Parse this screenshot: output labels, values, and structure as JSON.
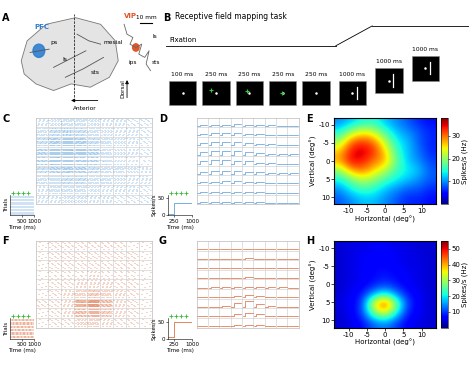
{
  "figure": {
    "panel_labels": [
      "A",
      "B",
      "C",
      "D",
      "E",
      "F",
      "G",
      "H"
    ],
    "A": {
      "regions": [
        {
          "label": "PFC",
          "color": "#2f7fd0"
        },
        {
          "label": "VIP",
          "color": "#e0562a"
        }
      ],
      "sulci": [
        "ls",
        "ps",
        "sts"
      ],
      "section_labels": [
        "ls",
        "sts",
        "ips",
        "mesial"
      ],
      "scale": "10 mm",
      "directions": [
        "Dorsal",
        "Anterior"
      ]
    },
    "B": {
      "title": "Receptive field mapping task",
      "phase": "Fixation",
      "epochs": [
        "100 ms",
        "250 ms",
        "250 ms",
        "250 ms",
        "250 ms",
        "1000 ms",
        "1000 ms",
        "1000 ms"
      ]
    }
  },
  "chart_data": [
    {
      "panel": "C",
      "type": "raster",
      "color": "#3d8fd6",
      "inset": {
        "ylabel": "Trials",
        "xlabel": "Time (ms)",
        "xlim": [
          0,
          1000
        ],
        "xticks": [
          500,
          1000
        ]
      }
    },
    {
      "panel": "D",
      "type": "psth_grid",
      "color": "#3d8fd6",
      "inset": {
        "ylabel": "Spikes/s",
        "ylim": [
          0,
          60
        ],
        "yticks": [
          0,
          50
        ],
        "xlabel": "Time (ms)",
        "xlim": [
          0,
          1000
        ],
        "xticks": [
          250,
          1000
        ]
      }
    },
    {
      "panel": "E",
      "type": "heatmap",
      "xlabel": "Horizontal (deg°)",
      "ylabel": "Vertical (deg°)",
      "xlim": [
        -14,
        14
      ],
      "ylim": [
        12,
        -12
      ],
      "xticks": [
        -10,
        -5,
        0,
        5,
        10
      ],
      "yticks": [
        -10,
        -5,
        0,
        5,
        10
      ],
      "cells": [
        [
          10,
          12,
          14,
          15,
          12,
          10,
          8,
          6,
          5
        ],
        [
          14,
          20,
          24,
          22,
          16,
          12,
          10,
          8,
          6
        ],
        [
          20,
          30,
          32,
          30,
          22,
          14,
          12,
          8,
          6
        ],
        [
          26,
          34,
          36,
          33,
          26,
          16,
          12,
          9,
          6
        ],
        [
          28,
          35,
          34,
          30,
          28,
          18,
          12,
          10,
          7
        ],
        [
          20,
          28,
          30,
          26,
          22,
          16,
          14,
          12,
          8
        ],
        [
          14,
          18,
          22,
          20,
          16,
          14,
          12,
          10,
          8
        ],
        [
          10,
          14,
          16,
          15,
          12,
          10,
          8,
          8,
          6
        ],
        [
          8,
          10,
          12,
          12,
          10,
          8,
          6,
          6,
          5
        ]
      ],
      "colorbar": {
        "label": "Spikes/s (Hz)",
        "lim": [
          0,
          38
        ],
        "ticks": [
          10,
          20,
          30
        ]
      }
    },
    {
      "panel": "F",
      "type": "raster",
      "color": "#d9541e",
      "inset": {
        "ylabel": "Trials",
        "xlabel": "Time (ms)",
        "xlim": [
          0,
          1000
        ],
        "xticks": [
          500,
          1000
        ]
      }
    },
    {
      "panel": "G",
      "type": "psth_grid",
      "color": "#d9541e",
      "inset": {
        "ylabel": "Spikes/s",
        "ylim": [
          0,
          60
        ],
        "yticks": [
          0,
          50
        ],
        "xlabel": "Time (ms)",
        "xlim": [
          0,
          1000
        ],
        "xticks": [
          250,
          1000
        ]
      }
    },
    {
      "panel": "H",
      "type": "heatmap",
      "xlabel": "Horizontal (deg°)",
      "ylabel": "Vertical (deg°)",
      "xlim": [
        -14,
        14
      ],
      "ylim": [
        12,
        -12
      ],
      "xticks": [
        -10,
        -5,
        0,
        5,
        10
      ],
      "yticks": [
        -10,
        -5,
        0,
        5,
        10
      ],
      "cells": [
        [
          4,
          5,
          5,
          6,
          6,
          5,
          5,
          4,
          4
        ],
        [
          4,
          5,
          6,
          6,
          7,
          6,
          5,
          5,
          4
        ],
        [
          4,
          5,
          6,
          7,
          7,
          6,
          5,
          5,
          4
        ],
        [
          4,
          5,
          6,
          7,
          8,
          7,
          6,
          5,
          4
        ],
        [
          4,
          5,
          6,
          8,
          10,
          8,
          6,
          5,
          4
        ],
        [
          4,
          6,
          8,
          16,
          22,
          14,
          8,
          6,
          4
        ],
        [
          5,
          6,
          10,
          36,
          50,
          28,
          10,
          6,
          4
        ],
        [
          4,
          6,
          10,
          26,
          34,
          20,
          8,
          6,
          4
        ],
        [
          4,
          5,
          7,
          12,
          14,
          10,
          6,
          5,
          4
        ]
      ],
      "colorbar": {
        "label": "Spikes/s (Hz)",
        "lim": [
          0,
          55
        ],
        "ticks": [
          10,
          20,
          30,
          40,
          50
        ]
      }
    }
  ]
}
